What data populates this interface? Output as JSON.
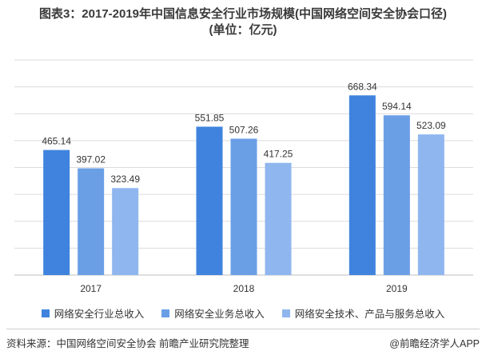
{
  "title": {
    "line1": "图表3：2017-2019年中国信息安全行业市场规模(中国网络空间安全协会口径)",
    "line2": "(单位：亿元)"
  },
  "chart_data": {
    "type": "bar",
    "categories": [
      "2017",
      "2018",
      "2019"
    ],
    "series": [
      {
        "name": "网络安全行业总收入",
        "values": [
          465.14,
          551.85,
          668.34
        ],
        "color": "#3f83de"
      },
      {
        "name": "网络安全业务总收入",
        "values": [
          397.02,
          507.26,
          594.14
        ],
        "color": "#6a9fe6"
      },
      {
        "name": "网络安全技术、产品与服务总收入",
        "values": [
          323.49,
          417.25,
          523.09
        ],
        "color": "#8fb6ee"
      }
    ],
    "ylim": [
      0,
      800
    ],
    "grid": true,
    "legend_position": "bottom"
  },
  "footer": {
    "source": "资料来源：中国网络空间安全协会 前瞻产业研究院整理",
    "credit": "@前瞻经济学人APP"
  }
}
